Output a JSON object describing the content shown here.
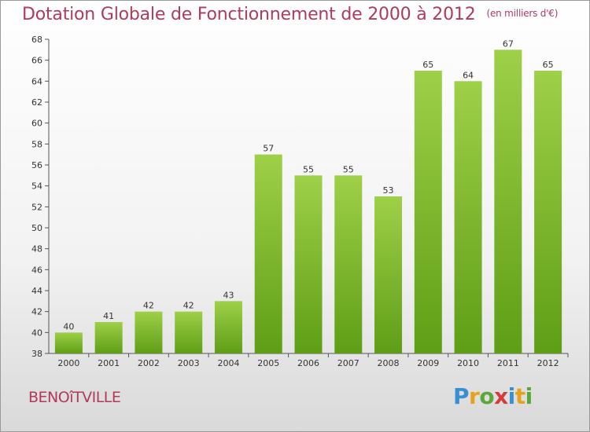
{
  "title": "Dotation Globale de Fonctionnement de 2000 à 2012",
  "unit": "(en milliers d'€)",
  "commune": "BENOîTVILLE",
  "logo": {
    "letters": [
      "P",
      "r",
      "o",
      "x",
      "i",
      "t",
      "i"
    ],
    "colors": [
      "#3a8fd1",
      "#e8a11a",
      "#5aa83a",
      "#d63b3b",
      "#3a8fd1",
      "#e8a11a",
      "#5aa83a"
    ]
  },
  "colors": {
    "bar_light": "#9ed048",
    "bar_dark": "#5e9e16",
    "title": "#b03a5b"
  },
  "chart_data": {
    "type": "bar",
    "categories": [
      "2000",
      "2001",
      "2002",
      "2003",
      "2004",
      "2005",
      "2006",
      "2007",
      "2008",
      "2009",
      "2010",
      "2011",
      "2012"
    ],
    "values": [
      40,
      41,
      42,
      42,
      43,
      57,
      55,
      55,
      53,
      65,
      64,
      67,
      65
    ],
    "title": "Dotation Globale de Fonctionnement de 2000 à 2012",
    "xlabel": "",
    "ylabel": "",
    "ylim": [
      38,
      68
    ],
    "yticks": [
      38,
      40,
      42,
      44,
      46,
      48,
      50,
      52,
      54,
      56,
      58,
      60,
      62,
      64,
      66,
      68
    ],
    "grid": false,
    "legend": "none"
  }
}
